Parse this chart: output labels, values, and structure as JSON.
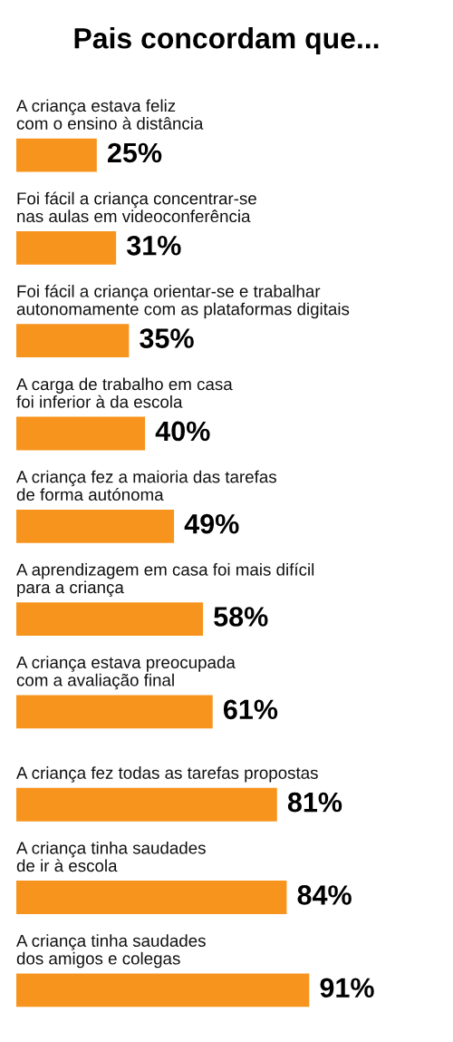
{
  "chart_data": {
    "type": "bar",
    "orientation": "horizontal",
    "title": "Pais concordam que...",
    "categories": [
      "A criança estava feliz\ncom o ensino à distância",
      "Foi fácil a criança concentrar-se\nnas aulas em videoconferência",
      "Foi fácil a criança orientar-se e trabalhar\nautonomamente com as plataformas digitais",
      "A carga de trabalho em casa\nfoi inferior à da escola",
      "A criança fez a maioria das tarefas\nde forma autónoma",
      "A aprendizagem em casa foi mais difícil\npara a criança",
      "A criança estava preocupada\ncom a avaliação final",
      "A criança fez todas as tarefas propostas",
      "A criança tinha saudades\nde ir à escola",
      "A criança tinha saudades\ndos amigos e colegas"
    ],
    "values": [
      25,
      31,
      35,
      40,
      49,
      58,
      61,
      81,
      84,
      91
    ],
    "value_labels": [
      "25%",
      "31%",
      "35%",
      "40%",
      "49%",
      "58%",
      "61%",
      "81%",
      "84%",
      "91%"
    ],
    "color": "#f7941d"
  }
}
